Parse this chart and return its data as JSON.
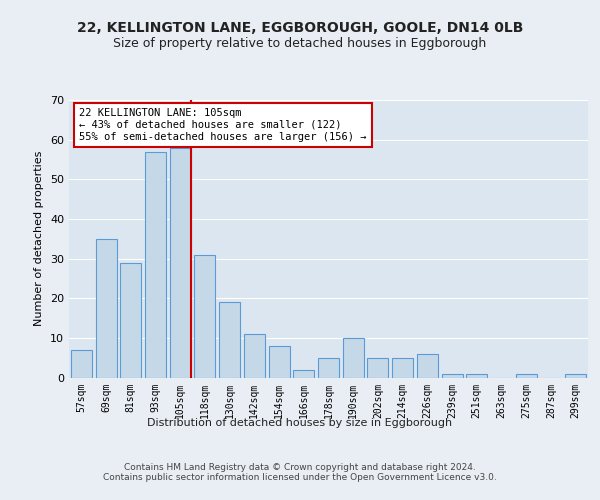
{
  "title1": "22, KELLINGTON LANE, EGGBOROUGH, GOOLE, DN14 0LB",
  "title2": "Size of property relative to detached houses in Eggborough",
  "xlabel": "Distribution of detached houses by size in Eggborough",
  "ylabel": "Number of detached properties",
  "categories": [
    "57sqm",
    "69sqm",
    "81sqm",
    "93sqm",
    "105sqm",
    "118sqm",
    "130sqm",
    "142sqm",
    "154sqm",
    "166sqm",
    "178sqm",
    "190sqm",
    "202sqm",
    "214sqm",
    "226sqm",
    "239sqm",
    "251sqm",
    "263sqm",
    "275sqm",
    "287sqm",
    "299sqm"
  ],
  "values": [
    7,
    35,
    29,
    57,
    58,
    31,
    19,
    11,
    8,
    2,
    5,
    10,
    5,
    5,
    6,
    1,
    1,
    0,
    1,
    0,
    1
  ],
  "bar_color": "#c5d8e8",
  "bar_edge_color": "#5b9bd5",
  "vline_index": 4,
  "vline_color": "#cc0000",
  "annotation_lines": [
    "22 KELLINGTON LANE: 105sqm",
    "← 43% of detached houses are smaller (122)",
    "55% of semi-detached houses are larger (156) →"
  ],
  "annotation_box_color": "#ffffff",
  "annotation_box_edge": "#cc0000",
  "ylim": [
    0,
    70
  ],
  "yticks": [
    0,
    10,
    20,
    30,
    40,
    50,
    60,
    70
  ],
  "background_color": "#e8eef4",
  "plot_bg_color": "#dce6f0",
  "footer": "Contains HM Land Registry data © Crown copyright and database right 2024.\nContains public sector information licensed under the Open Government Licence v3.0.",
  "title1_fontsize": 10,
  "title2_fontsize": 9,
  "grid_color": "#ffffff",
  "bar_linewidth": 0.8
}
